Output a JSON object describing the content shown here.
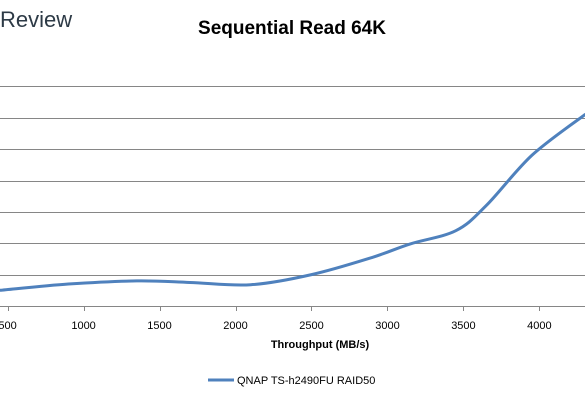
{
  "logo": {
    "text": "Review"
  },
  "chart_data": {
    "type": "line",
    "title": "Sequential Read 64K",
    "xlabel": "Throughput (MB/s)",
    "ylabel": "",
    "xlim": [
      450,
      4300
    ],
    "x_ticks": [
      500,
      1000,
      1500,
      2000,
      2500,
      3000,
      3500,
      4000
    ],
    "x_tick_labels": [
      "500",
      "1000",
      "1500",
      "2000",
      "2500",
      "3000",
      "3500",
      "4000"
    ],
    "ylim": [
      0,
      8
    ],
    "y_gridlines": [
      1,
      2,
      3,
      4,
      5,
      6,
      7
    ],
    "y_tick_labels_visible": false,
    "grid": true,
    "legend_position": "bottom",
    "series": [
      {
        "name": "QNAP TS-h2490FU RAID50",
        "color": "#4f81bd",
        "x": [
          450,
          900,
          1350,
          1700,
          2100,
          2500,
          2900,
          3150,
          3450,
          3650,
          3950,
          4300
        ],
        "y": [
          0.5,
          0.7,
          0.8,
          0.75,
          0.68,
          1.0,
          1.55,
          1.98,
          2.4,
          3.2,
          4.8,
          6.1
        ]
      }
    ]
  }
}
